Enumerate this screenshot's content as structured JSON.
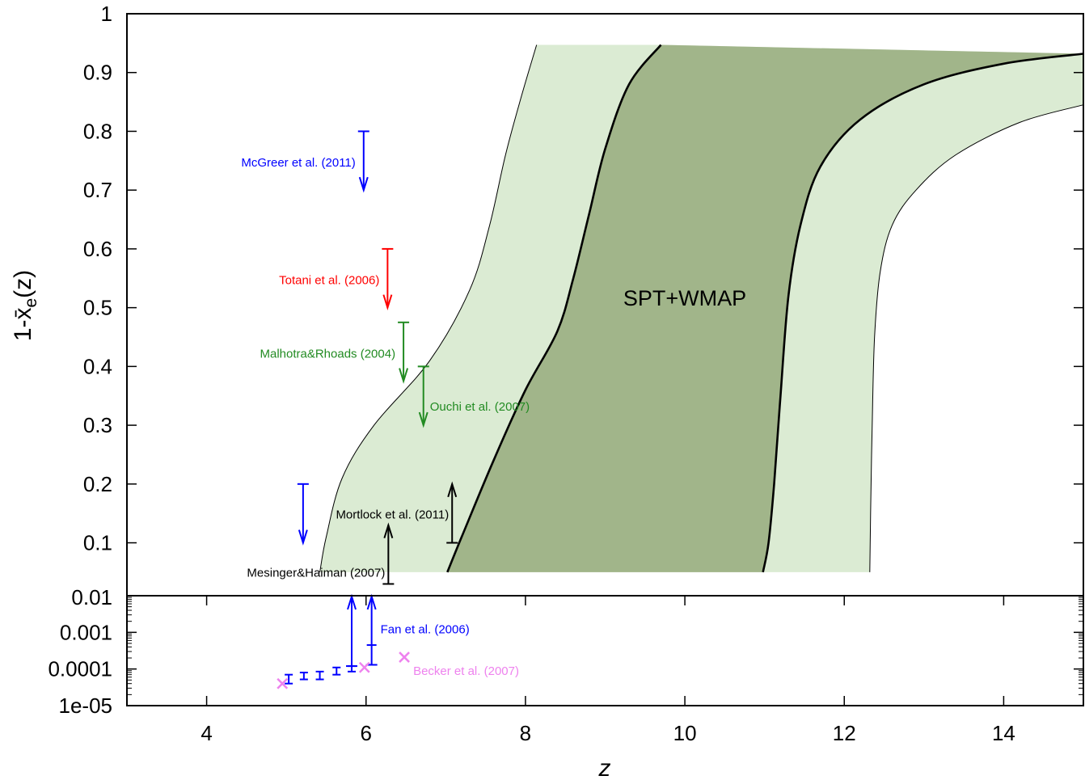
{
  "chart_data": {
    "type": "area",
    "xlabel": "z",
    "ylabel": "1-x̄e(z)",
    "xlim": [
      3,
      15
    ],
    "grid": false,
    "legend": "none",
    "panels": [
      {
        "name": "upper",
        "scale": "linear",
        "ylim": [
          0.01,
          1
        ],
        "yticks": [
          "0.01",
          "0.1",
          "0.2",
          "0.3",
          "0.4",
          "0.5",
          "0.6",
          "0.7",
          "0.8",
          "0.9",
          "1"
        ]
      },
      {
        "name": "lower",
        "scale": "log",
        "ylim": [
          1e-05,
          0.01
        ],
        "yticks": [
          "1e-05",
          "0.0001",
          "0.001",
          "0.01"
        ]
      }
    ],
    "xticks": [
      "4",
      "6",
      "8",
      "10",
      "12",
      "14"
    ],
    "band_label": "SPT+WMAP",
    "bands": {
      "outer_left": [
        [
          5.42,
          0.05
        ],
        [
          5.5,
          0.11
        ],
        [
          5.7,
          0.21
        ],
        [
          6.1,
          0.3
        ],
        [
          6.8,
          0.41
        ],
        [
          7.3,
          0.53
        ],
        [
          7.55,
          0.64
        ],
        [
          7.75,
          0.76
        ],
        [
          7.95,
          0.86
        ],
        [
          8.14,
          0.947
        ]
      ],
      "inner_left": [
        [
          7.02,
          0.05
        ],
        [
          7.2,
          0.11
        ],
        [
          7.6,
          0.24
        ],
        [
          8.0,
          0.36
        ],
        [
          8.4,
          0.46
        ],
        [
          8.6,
          0.55
        ],
        [
          8.8,
          0.66
        ],
        [
          9.0,
          0.77
        ],
        [
          9.3,
          0.88
        ],
        [
          9.7,
          0.947
        ]
      ],
      "inner_right": [
        [
          10.98,
          0.05
        ],
        [
          11.05,
          0.1
        ],
        [
          11.12,
          0.2
        ],
        [
          11.2,
          0.35
        ],
        [
          11.3,
          0.52
        ],
        [
          11.45,
          0.64
        ],
        [
          11.7,
          0.74
        ],
        [
          12.2,
          0.82
        ],
        [
          13.0,
          0.88
        ],
        [
          14.0,
          0.915
        ],
        [
          15.0,
          0.932
        ]
      ],
      "outer_right": [
        [
          12.32,
          0.05
        ],
        [
          12.33,
          0.15
        ],
        [
          12.35,
          0.3
        ],
        [
          12.38,
          0.45
        ],
        [
          12.45,
          0.56
        ],
        [
          12.6,
          0.64
        ],
        [
          12.9,
          0.7
        ],
        [
          13.4,
          0.76
        ],
        [
          14.2,
          0.815
        ],
        [
          15.0,
          0.845
        ]
      ],
      "top_outer": 0.947,
      "top_right": 0.932,
      "colors": {
        "outer": "#dbebd3",
        "inner": "#a1b58a"
      }
    },
    "constraints": [
      {
        "label": "McGreer et al. (2011)",
        "color": "#0000ff",
        "z": 5.97,
        "y": 0.8,
        "type": "upper",
        "y_end": 0.7
      },
      {
        "label": "Totani et al. (2006)",
        "color": "#ff0000",
        "z": 6.27,
        "y": 0.6,
        "type": "upper",
        "y_end": 0.5
      },
      {
        "label": "Malhotra&Rhoads (2004)",
        "color": "#228b22",
        "z": 6.47,
        "y": 0.475,
        "type": "upper",
        "y_end": 0.375
      },
      {
        "label": "Ouchi et al. (2007)",
        "color": "#228b22",
        "z": 6.72,
        "y": 0.4,
        "type": "upper",
        "y_end": 0.3
      },
      {
        "label": "",
        "color": "#0000ff",
        "z": 5.21,
        "y": 0.2,
        "type": "upper",
        "y_end": 0.1
      },
      {
        "label": "Mortlock et al. (2011)",
        "color": "#000000",
        "z": 7.08,
        "y": 0.1,
        "type": "lower",
        "y_end": 0.2
      },
      {
        "label": "Mesinger&Haiman (2007)",
        "color": "#000000",
        "z": 6.28,
        "y": 0.03,
        "type": "lower",
        "y_end": 0.13
      }
    ],
    "fan": {
      "label": "Fan et al. (2006)",
      "color": "#0000ff",
      "errorbars": [
        {
          "z": 5.03,
          "y": 5.5e-05,
          "lo": 4e-05,
          "hi": 7e-05
        },
        {
          "z": 5.22,
          "y": 6.5e-05,
          "lo": 5.2e-05,
          "hi": 8e-05
        },
        {
          "z": 5.42,
          "y": 6.8e-05,
          "lo": 5.2e-05,
          "hi": 8.5e-05
        },
        {
          "z": 5.63,
          "y": 8.8e-05,
          "lo": 7e-05,
          "hi": 0.00011
        },
        {
          "z": 5.82,
          "y": 0.0001,
          "lo": 8.5e-05,
          "hi": 0.00012
        }
      ],
      "lower_limits": [
        {
          "z": 5.82,
          "y": 0.00012,
          "y_end": 0.0095
        },
        {
          "z": 6.07,
          "y": 0.00013,
          "y_end": 0.0095,
          "mid": 0.00045
        }
      ]
    },
    "becker": {
      "label": "Becker et al. (2007)",
      "color": "#ee82ee",
      "points": [
        {
          "z": 4.95,
          "y": 4e-05
        },
        {
          "z": 5.98,
          "y": 0.00011
        },
        {
          "z": 6.48,
          "y": 0.00021
        }
      ]
    }
  }
}
